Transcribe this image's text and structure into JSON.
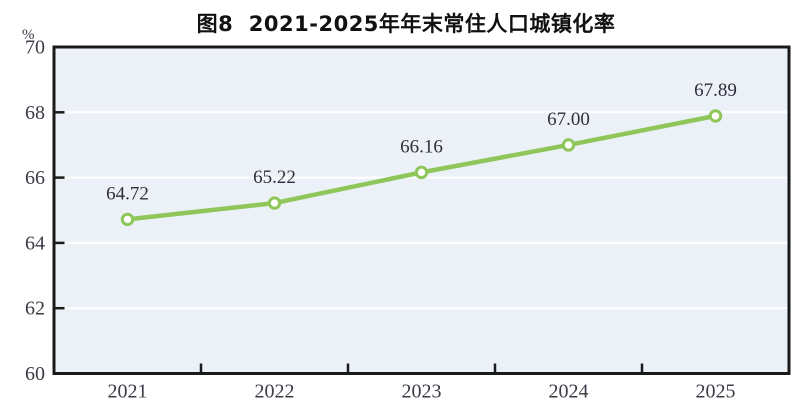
{
  "page": {
    "background": "#ffffff"
  },
  "chart_data": {
    "type": "line",
    "title": "图8  2021-2025年年末常住人口城镇化率",
    "unit_label": "%",
    "categories": [
      "2021",
      "2022",
      "2023",
      "2024",
      "2025"
    ],
    "values": [
      64.72,
      65.22,
      66.16,
      67.0,
      67.89
    ],
    "data_labels": [
      "64.72",
      "65.22",
      "66.16",
      "67.00",
      "67.89"
    ],
    "ylim": [
      60,
      70
    ],
    "yticks": [
      60,
      62,
      64,
      66,
      68,
      70
    ],
    "grid": true,
    "legend": "none",
    "colors": {
      "line": "#8FC65A",
      "marker_fill": "#FFFFFF",
      "plot_background": "#EBF1F6",
      "gridline": "#FFFFFF",
      "axis": "#1A1A1A",
      "tick_label": "#3B3B46",
      "data_label": "#2E2E3C",
      "title": "#111111"
    }
  }
}
